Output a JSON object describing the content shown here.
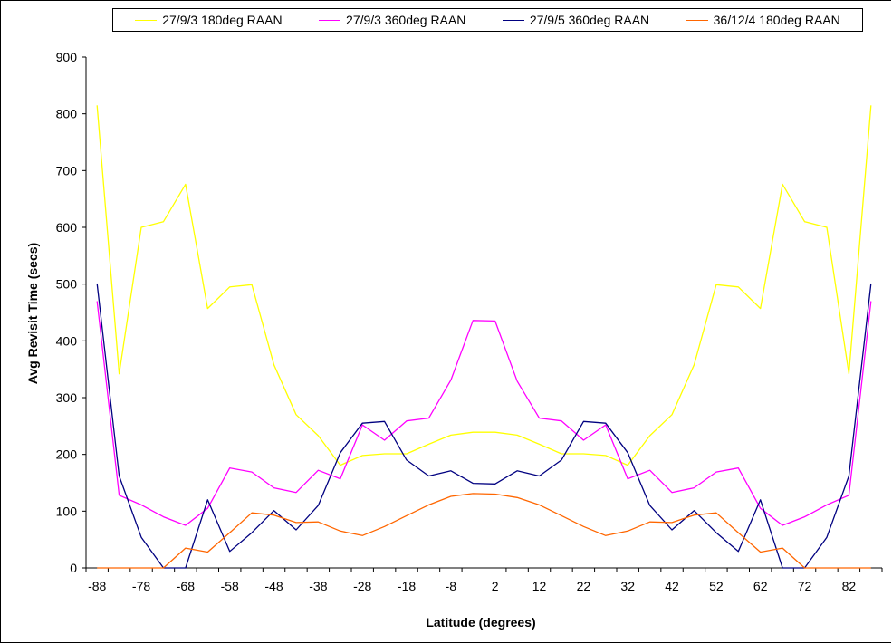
{
  "chart_data": {
    "type": "line",
    "title": "",
    "xlabel": "Latitude (degrees)",
    "ylabel": "Avg Revisit Time (secs)",
    "ylim": [
      0,
      900
    ],
    "y_ticks": [
      "0",
      "100",
      "200",
      "300",
      "400",
      "500",
      "600",
      "700",
      "800",
      "900"
    ],
    "x_tick_labels": [
      "-88",
      "-78",
      "-68",
      "-58",
      "-48",
      "-38",
      "-28",
      "-18",
      "-8",
      "2",
      "12",
      "22",
      "32",
      "42",
      "52",
      "62",
      "72",
      "82"
    ],
    "x": [
      -88,
      -83,
      -78,
      -73,
      -68,
      -63,
      -58,
      -53,
      -48,
      -43,
      -38,
      -33,
      -28,
      -23,
      -18,
      -13,
      -8,
      -3,
      2,
      7,
      12,
      17,
      22,
      27,
      32,
      37,
      42,
      47,
      52,
      57,
      62,
      67,
      72,
      77,
      82,
      87
    ],
    "grid": false,
    "legend_position": "top",
    "series": [
      {
        "name": "27/9/3 180deg RAAN",
        "color": "#ffff00",
        "values": [
          815,
          342,
          600,
          610,
          676,
          457,
          495,
          499,
          358,
          270,
          233,
          181,
          198,
          201,
          201,
          218,
          234,
          239,
          239,
          234,
          218,
          201,
          201,
          198,
          181,
          233,
          270,
          358,
          499,
          495,
          457,
          676,
          610,
          600,
          342,
          815
        ]
      },
      {
        "name": "27/9/3 360deg RAAN",
        "color": "#ff00ff",
        "values": [
          470,
          128,
          111,
          90,
          75,
          105,
          176,
          169,
          141,
          133,
          172,
          157,
          252,
          225,
          259,
          264,
          331,
          436,
          435,
          329,
          264,
          259,
          225,
          252,
          157,
          172,
          133,
          141,
          169,
          176,
          105,
          75,
          90,
          111,
          128,
          470
        ]
      },
      {
        "name": "27/9/5 360deg RAAN",
        "color": "#000080",
        "values": [
          501,
          162,
          54,
          0,
          0,
          120,
          29,
          62,
          101,
          67,
          110,
          203,
          255,
          258,
          190,
          162,
          171,
          149,
          148,
          171,
          162,
          190,
          258,
          255,
          203,
          110,
          67,
          101,
          62,
          29,
          120,
          0,
          0,
          54,
          162,
          501
        ]
      },
      {
        "name": "36/12/4 180deg RAAN",
        "color": "#ff6600",
        "values": [
          0,
          0,
          0,
          0,
          35,
          28,
          62,
          97,
          93,
          80,
          81,
          65,
          57,
          73,
          92,
          111,
          126,
          131,
          130,
          124,
          111,
          92,
          73,
          57,
          65,
          81,
          80,
          93,
          97,
          62,
          28,
          35,
          0,
          0,
          0,
          0
        ]
      }
    ]
  }
}
